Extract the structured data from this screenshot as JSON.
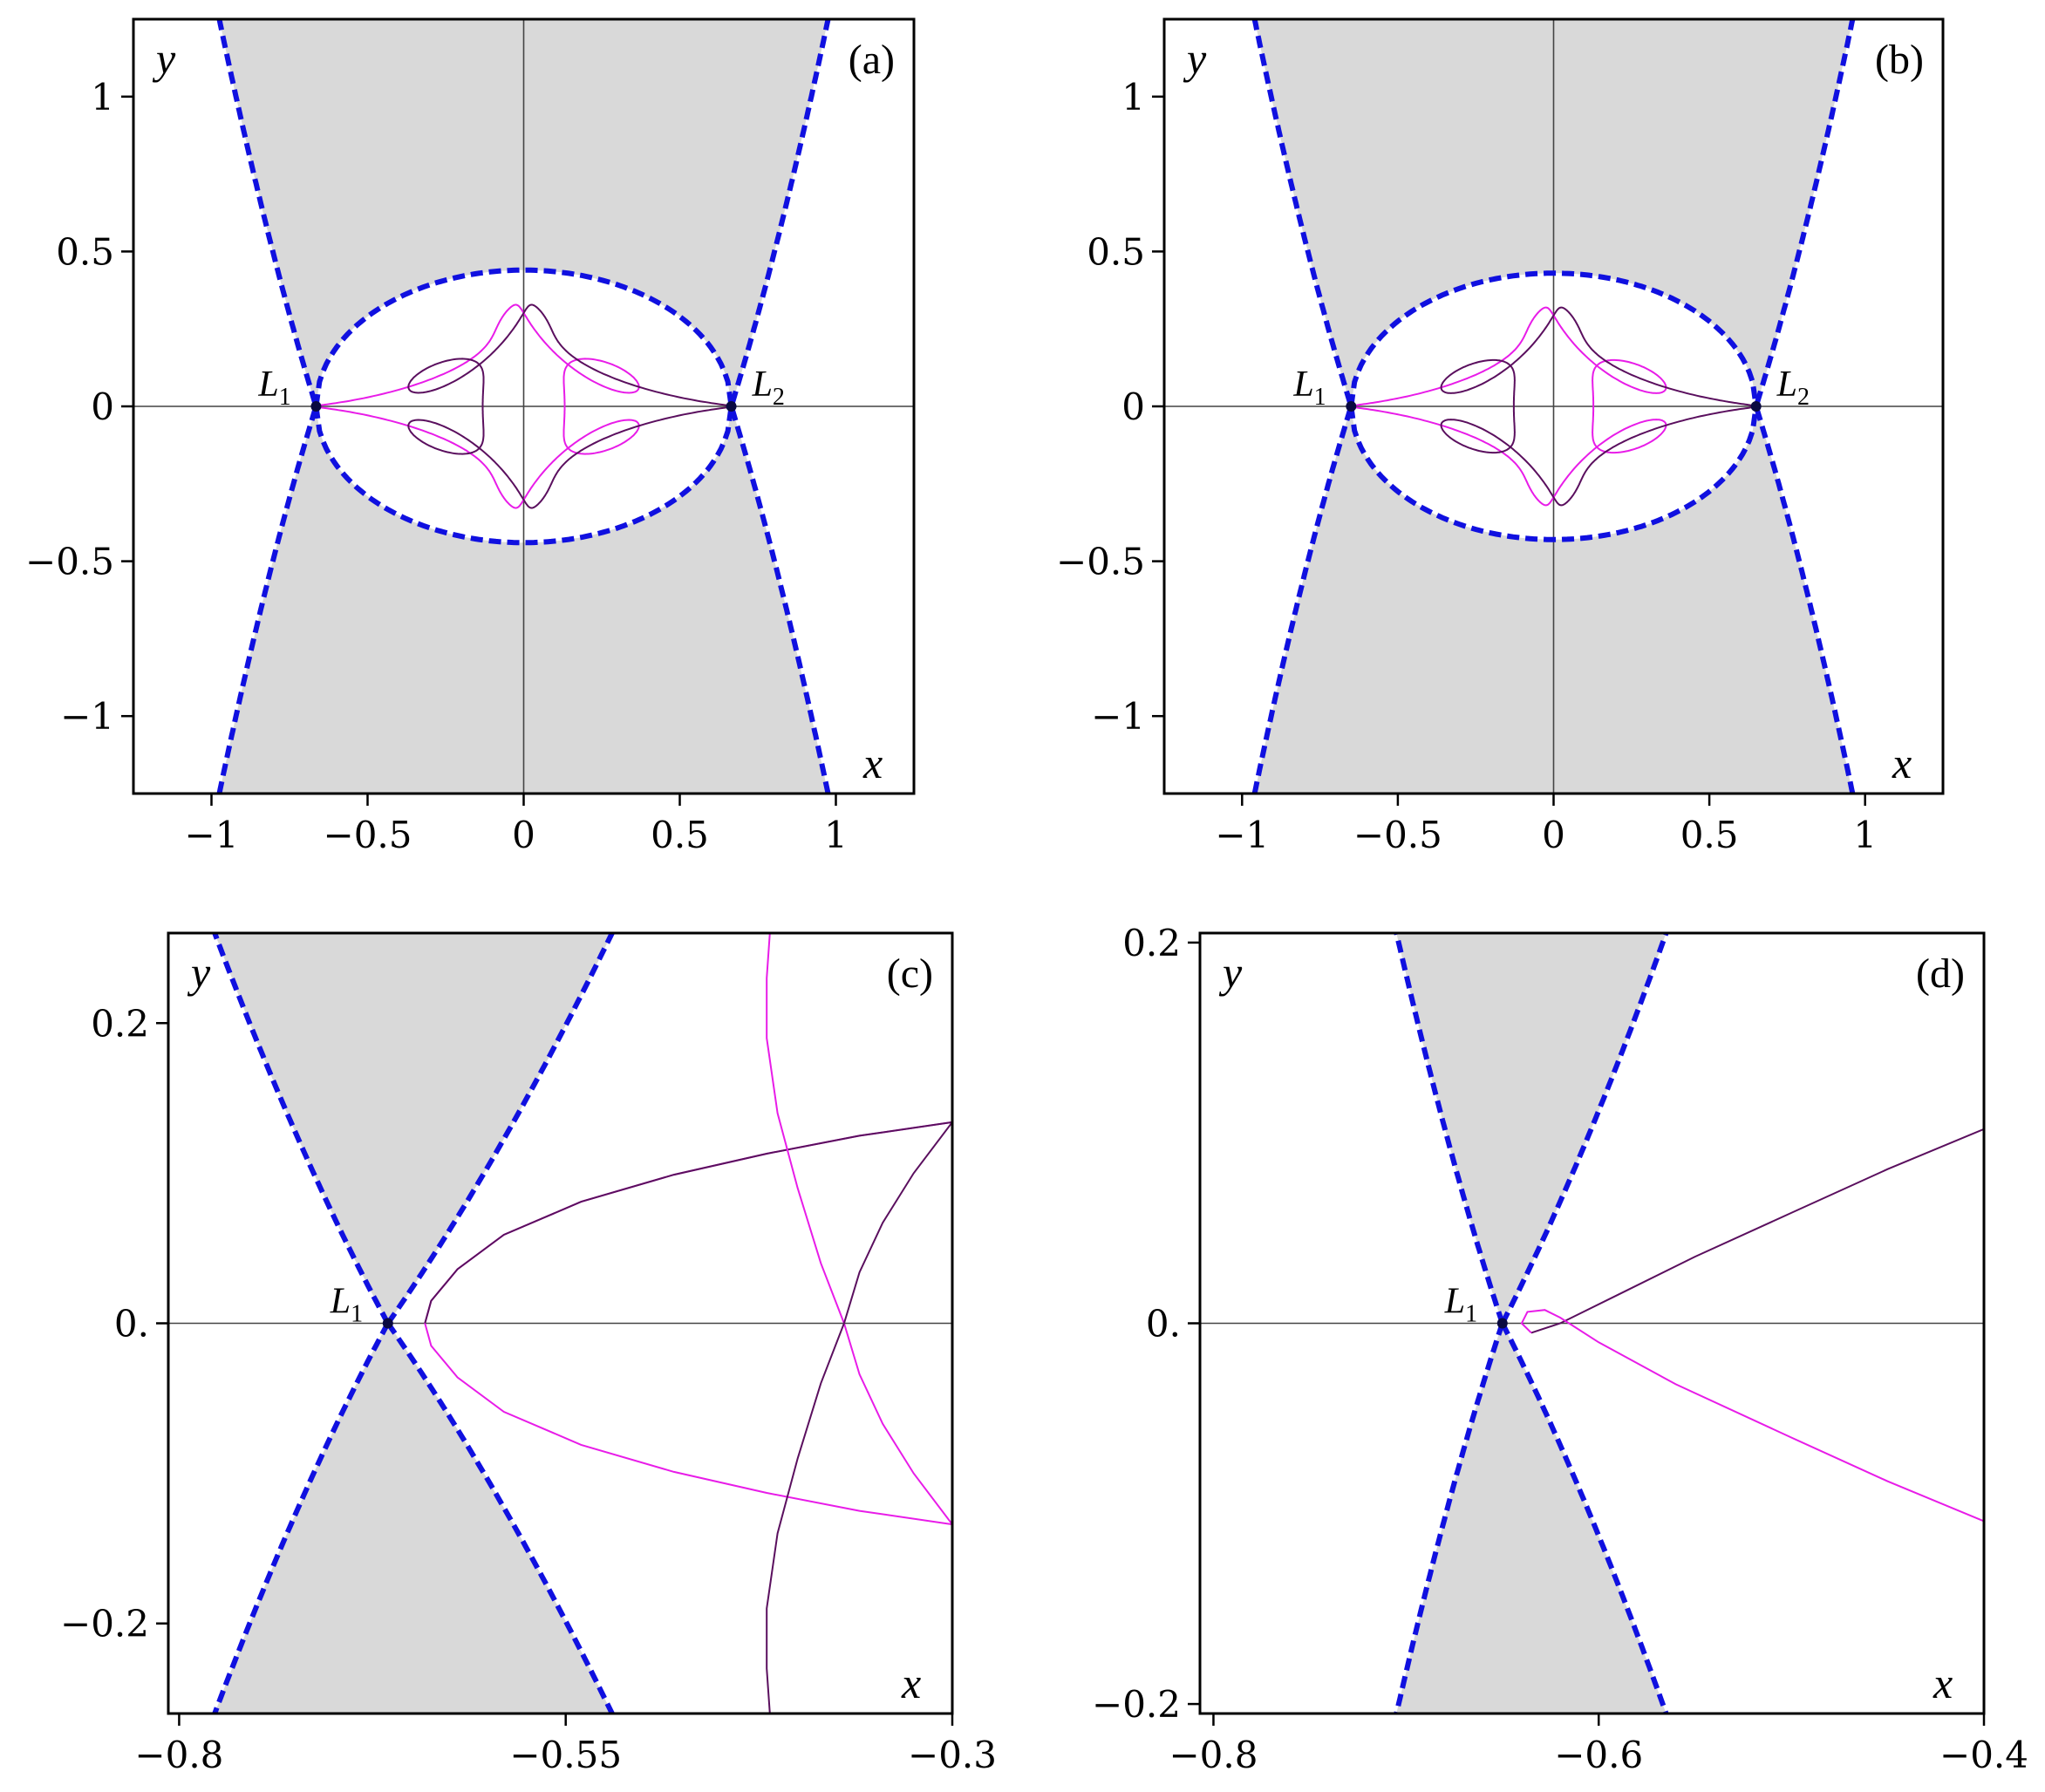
{
  "colors": {
    "forbidden_fill": "#d9d9d9",
    "zvc_line": "#1010e0",
    "orbit_a": "#e81ce8",
    "orbit_b": "#5a0f5e",
    "axis": "#444444",
    "frame": "#000000"
  },
  "chart_data": [
    {
      "type": "line",
      "panel_label": "(a)",
      "xlabel": "x",
      "ylabel": "y",
      "xlim": [
        -1.25,
        1.25
      ],
      "ylim": [
        -1.25,
        1.25
      ],
      "xticks": [
        {
          "v": -1,
          "t": "−1"
        },
        {
          "v": -0.5,
          "t": "−0.5"
        },
        {
          "v": 0,
          "t": "0"
        },
        {
          "v": 0.5,
          "t": "0.5"
        },
        {
          "v": 1,
          "t": "1"
        }
      ],
      "yticks": [
        {
          "v": 1,
          "t": "1"
        },
        {
          "v": 0.5,
          "t": "0.5"
        },
        {
          "v": 0,
          "t": "0"
        },
        {
          "v": -0.5,
          "t": "−0.5"
        },
        {
          "v": -1,
          "t": "−1"
        }
      ],
      "grid": false,
      "zvc": {
        "L": 0.665,
        "circle_r": 0.44,
        "outer_x_at_ylim": 0.975
      },
      "points": [
        {
          "name": "L",
          "sub": "1",
          "x": -0.665,
          "y": 0,
          "label_side": "left"
        },
        {
          "name": "L",
          "sub": "2",
          "x": 0.665,
          "y": 0,
          "label_side": "right"
        }
      ],
      "orbits": [
        {
          "color": "orbit_a",
          "kind": "rosette",
          "sign": -1,
          "a": 0.665,
          "ry": 0.375,
          "rx": 0.135,
          "n": 3
        },
        {
          "color": "orbit_b",
          "kind": "rosette",
          "sign": 1,
          "a": 0.665,
          "ry": 0.375,
          "rx": 0.135,
          "n": 3
        }
      ]
    },
    {
      "type": "line",
      "panel_label": "(b)",
      "xlabel": "x",
      "ylabel": "y",
      "xlim": [
        -1.25,
        1.25
      ],
      "ylim": [
        -1.25,
        1.25
      ],
      "xticks": [
        {
          "v": -1,
          "t": "−1"
        },
        {
          "v": -0.5,
          "t": "−0.5"
        },
        {
          "v": 0,
          "t": "0"
        },
        {
          "v": 0.5,
          "t": "0.5"
        },
        {
          "v": 1,
          "t": "1"
        }
      ],
      "yticks": [
        {
          "v": 1,
          "t": "1"
        },
        {
          "v": 0.5,
          "t": "0.5"
        },
        {
          "v": 0,
          "t": "0"
        },
        {
          "v": -0.5,
          "t": "−0.5"
        },
        {
          "v": -1,
          "t": "−1"
        }
      ],
      "grid": false,
      "zvc": {
        "L": 0.65,
        "circle_r": 0.43,
        "outer_x_at_ylim": 0.96
      },
      "points": [
        {
          "name": "L",
          "sub": "1",
          "x": -0.65,
          "y": 0,
          "label_side": "left"
        },
        {
          "name": "L",
          "sub": "2",
          "x": 0.65,
          "y": 0,
          "label_side": "right"
        }
      ],
      "orbits": [
        {
          "color": "orbit_a",
          "kind": "rosette",
          "sign": -1,
          "a": 0.65,
          "ry": 0.365,
          "rx": 0.13,
          "n": 3
        },
        {
          "color": "orbit_b",
          "kind": "rosette",
          "sign": 1,
          "a": 0.65,
          "ry": 0.365,
          "rx": 0.13,
          "n": 3
        }
      ]
    },
    {
      "type": "line",
      "panel_label": "(c)",
      "xlabel": "x",
      "ylabel": "y",
      "xlim": [
        -0.807,
        -0.3
      ],
      "ylim": [
        -0.26,
        0.26
      ],
      "xticks": [
        {
          "v": -0.8,
          "t": "−0.8"
        },
        {
          "v": -0.55,
          "t": "−0.55"
        },
        {
          "v": -0.3,
          "t": "−0.3"
        }
      ],
      "yticks": [
        {
          "v": 0.2,
          "t": "0.2"
        },
        {
          "v": 0,
          "t": "0."
        },
        {
          "v": -0.2,
          "t": "−0.2"
        }
      ],
      "grid": false,
      "zvc": {
        "L": -0.665,
        "top_left_x": -0.777,
        "top_right_x": -0.52,
        "bottom_left_x": -0.777,
        "bottom_right_x": -0.52
      },
      "points": [
        {
          "name": "L",
          "sub": "1",
          "x": -0.665,
          "y": 0,
          "label_side": "left"
        }
      ],
      "orbits": [
        {
          "color": "orbit_a",
          "kind": "curve",
          "pts": [
            [
              -0.3,
              -0.134
            ],
            [
              -0.36,
              -0.125
            ],
            [
              -0.42,
              -0.113
            ],
            [
              -0.48,
              -0.099
            ],
            [
              -0.54,
              -0.081
            ],
            [
              -0.59,
              -0.059
            ],
            [
              -0.62,
              -0.036
            ],
            [
              -0.637,
              -0.015
            ],
            [
              -0.641,
              0.0
            ],
            [
              -0.637,
              0.015
            ],
            [
              -0.62,
              0.036
            ],
            [
              -0.59,
              0.059
            ],
            [
              -0.54,
              0.081
            ],
            [
              -0.48,
              0.099
            ],
            [
              -0.42,
              0.113
            ],
            [
              -0.36,
              0.125
            ],
            [
              -0.3,
              0.134
            ]
          ]
        },
        {
          "color": "orbit_b",
          "kind": "curve",
          "pts": [
            [
              -0.641,
              0.0
            ],
            [
              -0.637,
              0.015
            ],
            [
              -0.62,
              0.036
            ],
            [
              -0.59,
              0.059
            ],
            [
              -0.54,
              0.081
            ],
            [
              -0.48,
              0.099
            ],
            [
              -0.42,
              0.113
            ],
            [
              -0.36,
              0.125
            ],
            [
              -0.3,
              0.134
            ]
          ]
        },
        {
          "color": "orbit_a",
          "kind": "curve",
          "pts": [
            [
              -0.3,
              -0.134
            ],
            [
              -0.325,
              -0.1
            ],
            [
              -0.345,
              -0.067
            ],
            [
              -0.36,
              -0.034
            ],
            [
              -0.37,
              0.0
            ],
            [
              -0.385,
              0.04
            ],
            [
              -0.4,
              0.09
            ],
            [
              -0.413,
              0.14
            ],
            [
              -0.42,
              0.19
            ],
            [
              -0.42,
              0.23
            ],
            [
              -0.418,
              0.26
            ]
          ]
        },
        {
          "color": "orbit_b",
          "kind": "curve",
          "pts": [
            [
              -0.3,
              0.134
            ],
            [
              -0.325,
              0.1
            ],
            [
              -0.345,
              0.067
            ],
            [
              -0.36,
              0.034
            ],
            [
              -0.37,
              0.0
            ],
            [
              -0.385,
              -0.04
            ],
            [
              -0.4,
              -0.09
            ],
            [
              -0.413,
              -0.14
            ],
            [
              -0.42,
              -0.19
            ],
            [
              -0.42,
              -0.23
            ],
            [
              -0.418,
              -0.26
            ]
          ]
        }
      ]
    },
    {
      "type": "line",
      "panel_label": "(d)",
      "xlabel": "x",
      "ylabel": "y",
      "xlim": [
        -0.807,
        -0.4
      ],
      "ylim": [
        -0.205,
        0.205
      ],
      "xticks": [
        {
          "v": -0.8,
          "t": "−0.8"
        },
        {
          "v": -0.6,
          "t": "−0.6"
        },
        {
          "v": -0.4,
          "t": "−0.4"
        }
      ],
      "yticks": [
        {
          "v": 0.2,
          "t": "0.2"
        },
        {
          "v": 0,
          "t": "0."
        },
        {
          "v": -0.2,
          "t": "−0.2"
        }
      ],
      "grid": false,
      "zvc": {
        "L": -0.65,
        "top_left_x": -0.705,
        "top_right_x": -0.565,
        "bottom_left_x": -0.705,
        "bottom_right_x": -0.565
      },
      "points": [
        {
          "name": "L",
          "sub": "1",
          "x": -0.65,
          "y": 0,
          "label_side": "left"
        }
      ],
      "orbits": [
        {
          "color": "orbit_b",
          "kind": "curve",
          "pts": [
            [
              -0.635,
              -0.005
            ],
            [
              -0.62,
              0.0
            ],
            [
              -0.59,
              0.015
            ],
            [
              -0.55,
              0.035
            ],
            [
              -0.5,
              0.058
            ],
            [
              -0.45,
              0.081
            ],
            [
              -0.4,
              0.102
            ]
          ]
        },
        {
          "color": "orbit_a",
          "kind": "curve",
          "pts": [
            [
              -0.635,
              -0.005
            ],
            [
              -0.64,
              0.0
            ],
            [
              -0.637,
              0.006
            ],
            [
              -0.628,
              0.007
            ],
            [
              -0.62,
              0.003
            ],
            [
              -0.6,
              -0.01
            ],
            [
              -0.56,
              -0.032
            ],
            [
              -0.5,
              -0.06
            ],
            [
              -0.45,
              -0.083
            ],
            [
              -0.4,
              -0.104
            ]
          ]
        }
      ]
    }
  ]
}
